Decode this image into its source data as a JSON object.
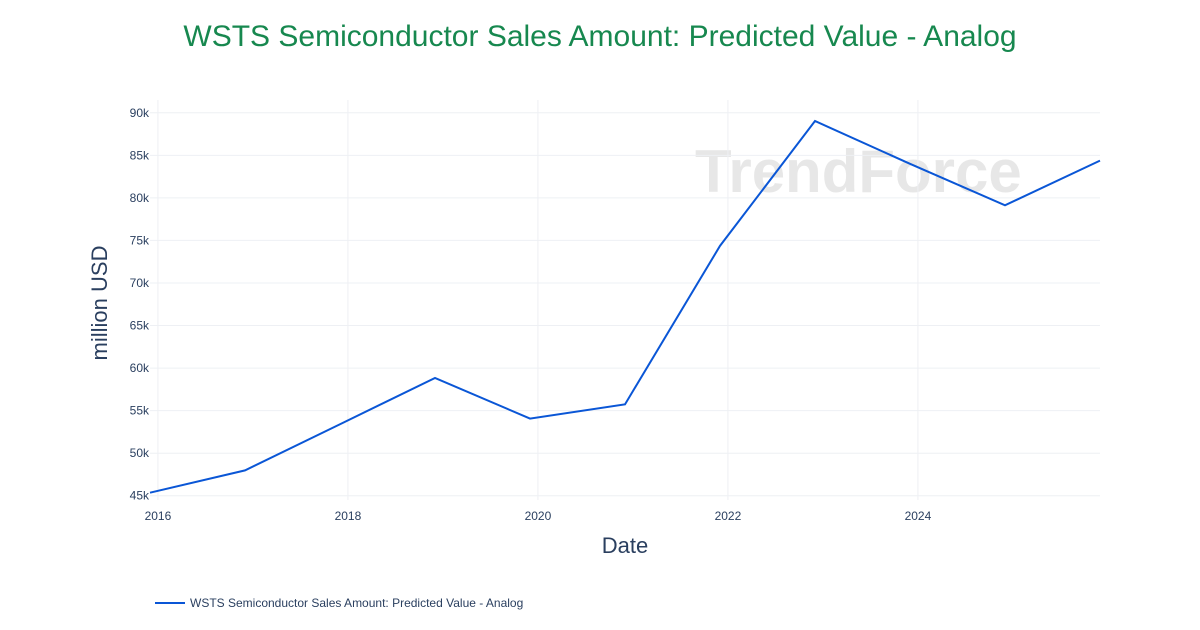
{
  "chart_data": {
    "type": "line",
    "title": "WSTS Semiconductor Sales Amount: Predicted Value - Analog",
    "xlabel": "Date",
    "ylabel": "million USD",
    "watermark": "TrendForce",
    "x_ticks": [
      "2016",
      "2018",
      "2020",
      "2022",
      "2024"
    ],
    "y_ticks": [
      "45k",
      "50k",
      "55k",
      "60k",
      "65k",
      "70k",
      "75k",
      "80k",
      "85k",
      "90k"
    ],
    "y_tick_values": [
      45000,
      50000,
      55000,
      60000,
      65000,
      70000,
      75000,
      80000,
      85000,
      90000
    ],
    "ylim": [
      44500,
      91500
    ],
    "grid": true,
    "legend_position": "bottom-left",
    "series": [
      {
        "name": "WSTS Semiconductor Sales Amount: Predicted Value - Analog",
        "color": "#0a56d6",
        "x": [
          "2015-12",
          "2016-12",
          "2017-12",
          "2018-12",
          "2019-12",
          "2020-12",
          "2021-12",
          "2022-12",
          "2023-12",
          "2024-12",
          "2025-12"
        ],
        "values": [
          45360,
          47980,
          53400,
          58840,
          54070,
          55740,
          74360,
          89030,
          84000,
          79130,
          84380
        ]
      }
    ]
  }
}
